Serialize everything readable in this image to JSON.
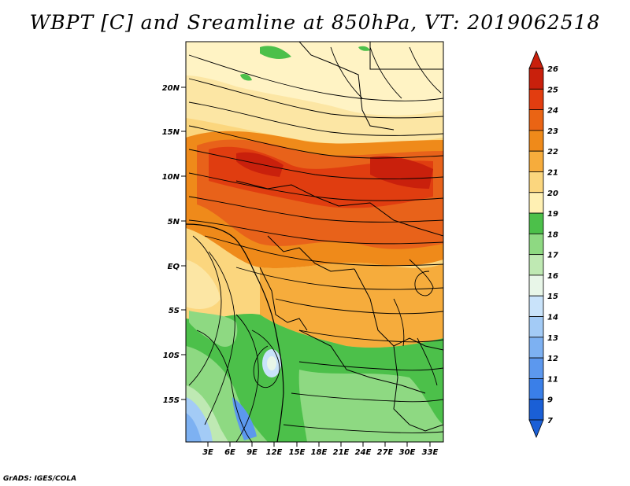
{
  "title": "WBPT [C] and Sreamline at 850hPa, VT: 2019062518",
  "footer": "GrADS: IGES/COLA",
  "map": {
    "lat_labels": [
      "20N",
      "15N",
      "10N",
      "5N",
      "EQ",
      "5S",
      "10S",
      "15S"
    ],
    "lon_labels": [
      "3E",
      "6E",
      "9E",
      "12E",
      "15E",
      "18E",
      "21E",
      "24E",
      "27E",
      "30E",
      "33E"
    ],
    "fields": [
      "wet-bulb potential temperature (shaded)",
      "850hPa streamlines"
    ]
  },
  "colorbar": {
    "levels": [
      "7",
      "9",
      "11",
      "12",
      "13",
      "14",
      "15",
      "16",
      "17",
      "18",
      "19",
      "20",
      "21",
      "22",
      "23",
      "24",
      "25",
      "26"
    ],
    "colors": [
      "#1a5fd6",
      "#3a7fe8",
      "#5c98ee",
      "#7db1f2",
      "#a3cbf6",
      "#c9e3fa",
      "#e8f6e8",
      "#bfe9b3",
      "#8ed982",
      "#4cc04a",
      "#fff0b3",
      "#fbd67e",
      "#f6ac3c",
      "#ef8a1a",
      "#ea6414",
      "#e23d10",
      "#c9200c"
    ]
  }
}
